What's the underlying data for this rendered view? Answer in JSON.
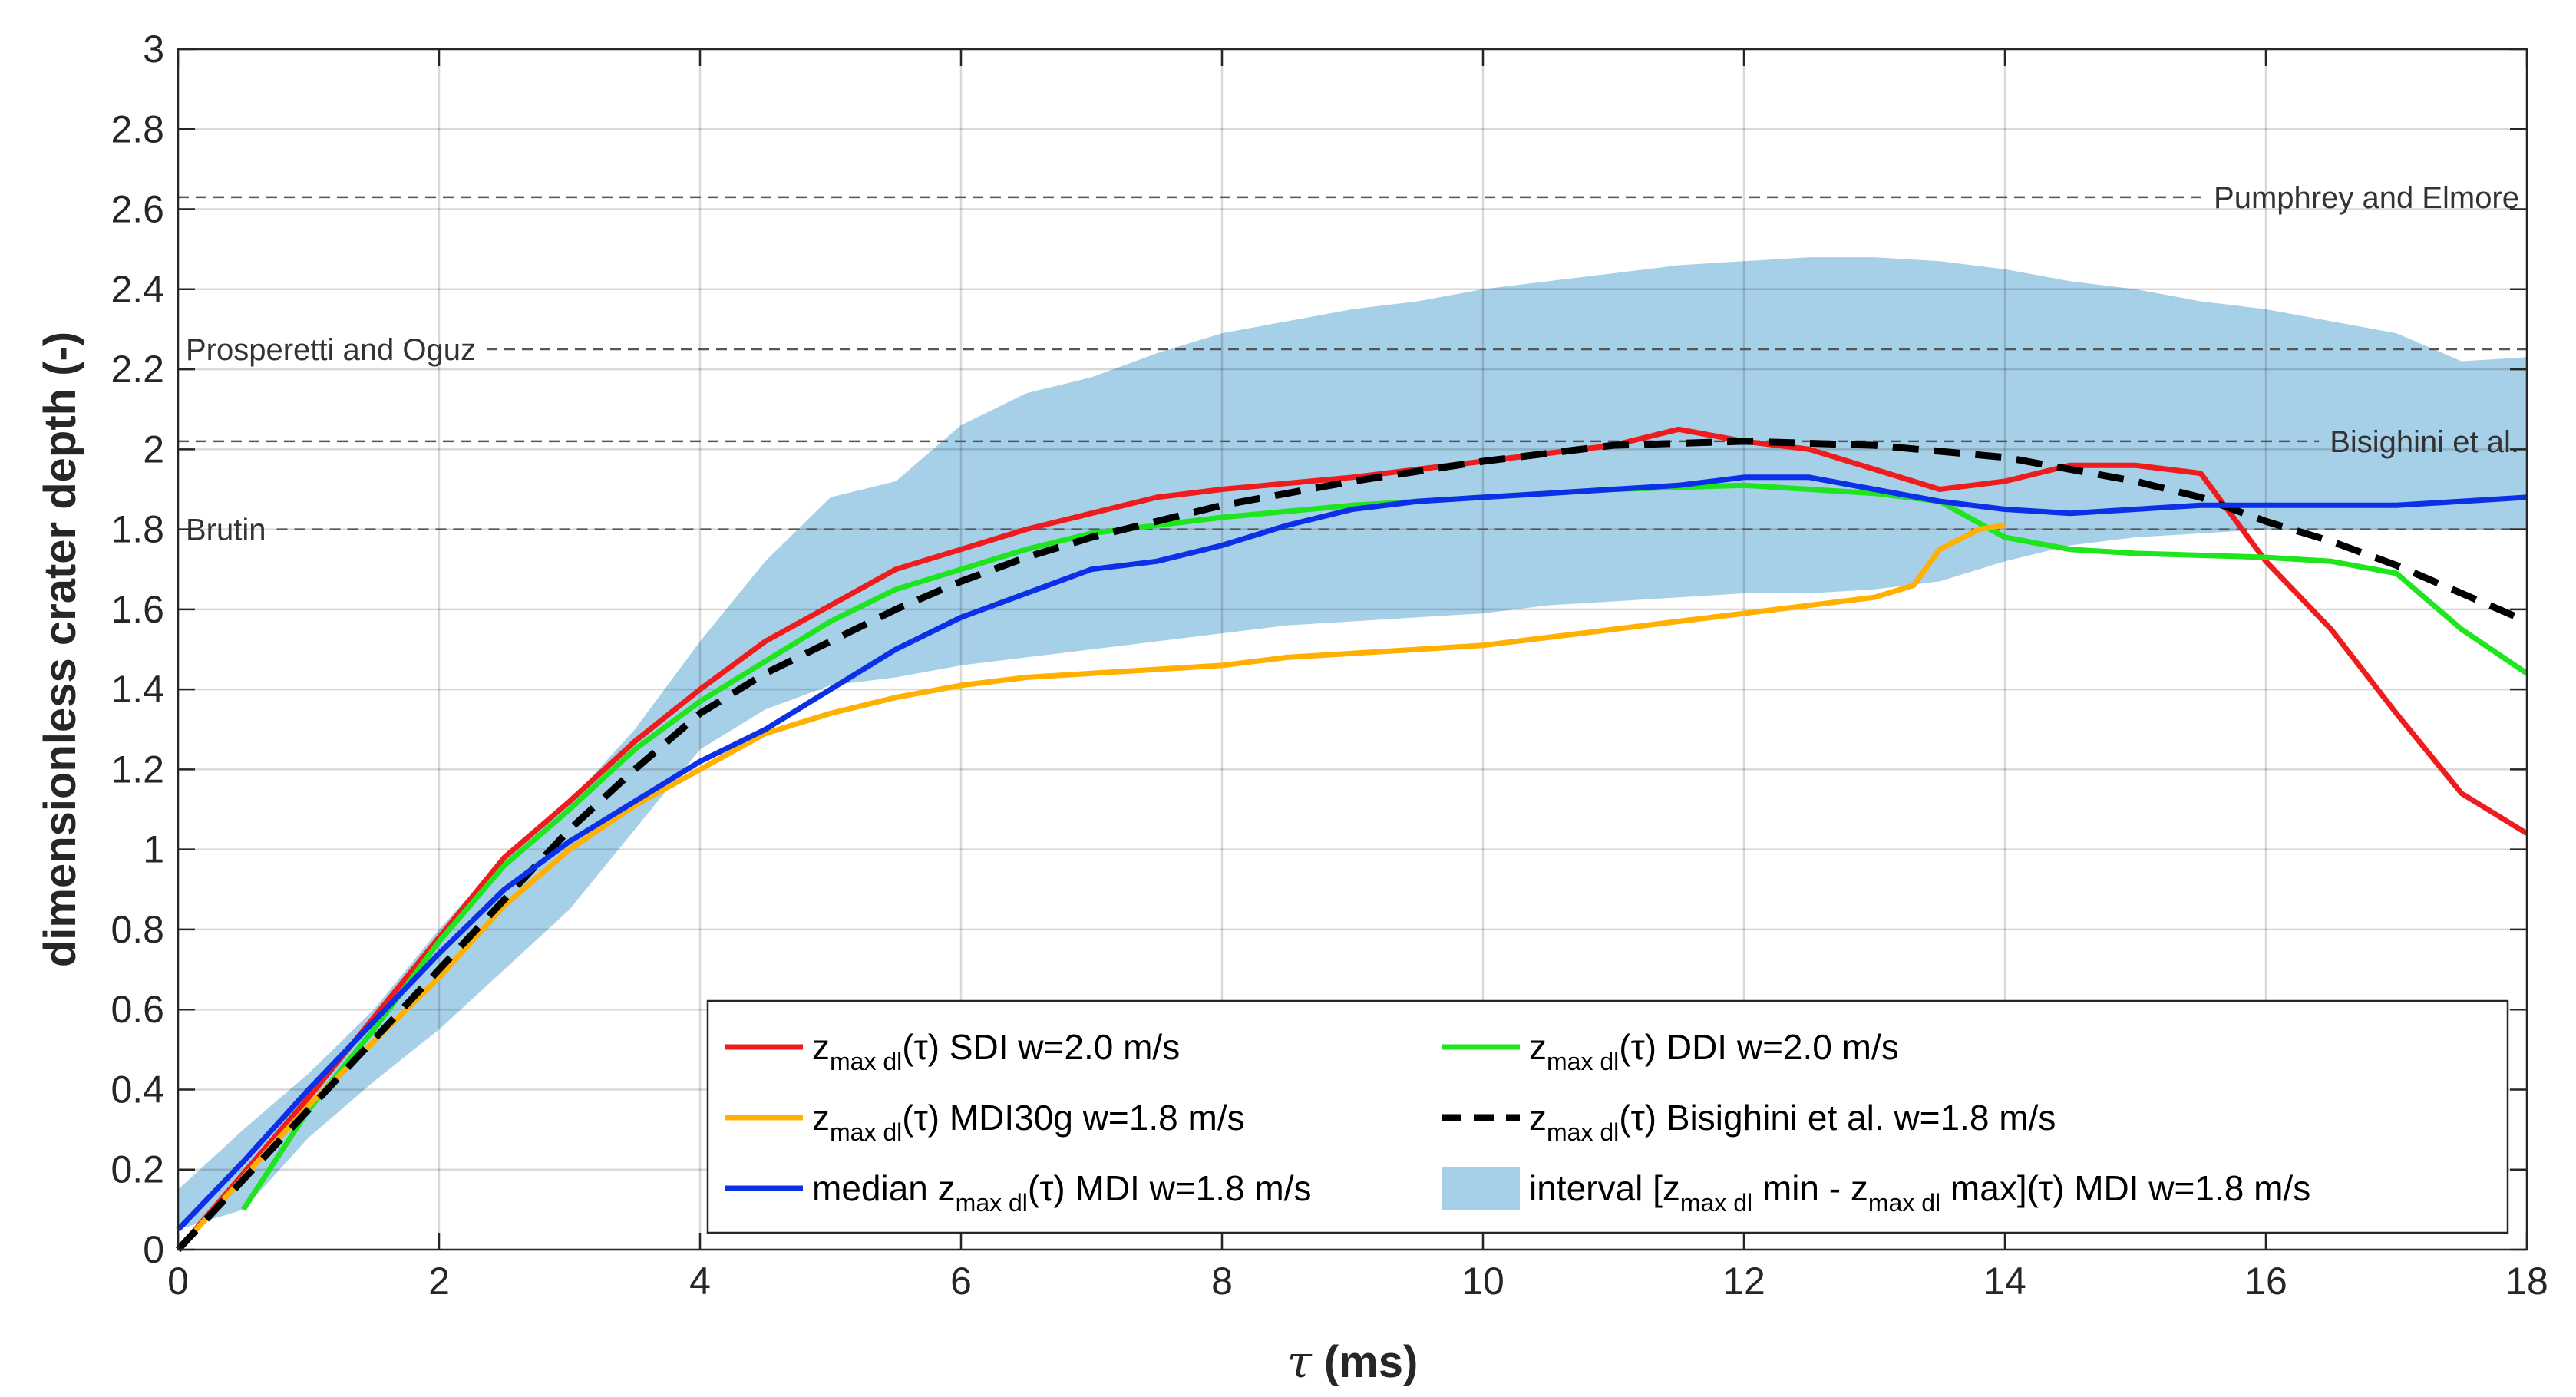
{
  "chart_data": {
    "type": "line",
    "title": "",
    "xlabel": {
      "symbol": "τ",
      "unit": " (ms)"
    },
    "ylabel": "dimensionless crater depth (-)",
    "xlim": [
      0,
      18
    ],
    "ylim": [
      0,
      3
    ],
    "xticks": [
      0,
      2,
      4,
      6,
      8,
      10,
      12,
      14,
      16,
      18
    ],
    "yticks": [
      0,
      0.2,
      0.4,
      0.6,
      0.8,
      1,
      1.2,
      1.4,
      1.6,
      1.8,
      2,
      2.2,
      2.4,
      2.6,
      2.8,
      3
    ],
    "grid": true,
    "legend_position": "bottom-right",
    "reference_lines": [
      {
        "name": "Pumphrey and Elmore",
        "y": 2.63,
        "label_side": "right"
      },
      {
        "name": "Prosperetti and Oguz",
        "y": 2.25,
        "label_side": "left"
      },
      {
        "name": "Bisighini et al.",
        "y": 2.02,
        "label_side": "right"
      },
      {
        "name": "Brutin",
        "y": 1.8,
        "label_side": "left"
      }
    ],
    "band": {
      "name": "interval [zmax dl min - zmax dl max](τ) MDI w=1.8 m/s",
      "color": "#a6cfe8",
      "x": [
        0,
        0.5,
        1,
        1.5,
        2,
        2.5,
        3,
        3.5,
        4,
        4.5,
        5,
        5.5,
        6,
        6.5,
        7,
        7.5,
        8,
        8.5,
        9,
        9.5,
        10,
        10.5,
        11,
        11.5,
        12,
        12.5,
        13,
        13.5,
        14,
        14.5,
        15,
        15.5,
        16,
        16.5,
        17,
        17.5,
        18
      ],
      "upper": [
        0.15,
        0.3,
        0.44,
        0.6,
        0.8,
        0.98,
        1.12,
        1.3,
        1.52,
        1.72,
        1.88,
        1.92,
        2.06,
        2.14,
        2.18,
        2.24,
        2.29,
        2.32,
        2.35,
        2.37,
        2.4,
        2.42,
        2.44,
        2.46,
        2.47,
        2.48,
        2.48,
        2.47,
        2.45,
        2.42,
        2.4,
        2.37,
        2.35,
        2.32,
        2.29,
        2.22,
        2.23
      ],
      "lower": [
        0.05,
        0.1,
        0.28,
        0.42,
        0.55,
        0.7,
        0.85,
        1.05,
        1.25,
        1.35,
        1.41,
        1.43,
        1.46,
        1.48,
        1.5,
        1.52,
        1.54,
        1.56,
        1.57,
        1.58,
        1.59,
        1.61,
        1.62,
        1.63,
        1.64,
        1.64,
        1.65,
        1.67,
        1.72,
        1.76,
        1.78,
        1.79,
        1.8,
        1.8,
        1.8,
        1.8,
        1.8
      ]
    },
    "series": [
      {
        "name": "SDI w=2.0 m/s",
        "color": "#ee1c1c",
        "style": "solid",
        "x": [
          0,
          1,
          2,
          2.5,
          3,
          3.5,
          4,
          4.5,
          5,
          5.5,
          6,
          6.5,
          7,
          7.5,
          8,
          9,
          9.5,
          10,
          11,
          11.5,
          12,
          12.5,
          13,
          13.5,
          14,
          14.5,
          15,
          15.5,
          16,
          16.5,
          17,
          17.5,
          18
        ],
        "y": [
          0,
          0.38,
          0.78,
          0.98,
          1.12,
          1.27,
          1.4,
          1.52,
          1.61,
          1.7,
          1.75,
          1.8,
          1.84,
          1.88,
          1.9,
          1.93,
          1.95,
          1.97,
          2.01,
          2.05,
          2.02,
          2.0,
          1.95,
          1.9,
          1.92,
          1.96,
          1.96,
          1.94,
          1.72,
          1.55,
          1.34,
          1.14,
          1.04
        ]
      },
      {
        "name": "DDI w=2.0 m/s",
        "color": "#1ee51e",
        "style": "solid",
        "x": [
          0.5,
          1,
          1.5,
          2,
          2.5,
          3,
          3.5,
          4,
          4.5,
          5,
          5.5,
          6,
          6.5,
          7,
          8,
          9,
          10,
          11,
          12,
          13,
          13.5,
          14,
          14.5,
          15,
          16,
          16.5,
          17,
          17.5,
          18
        ],
        "y": [
          0.1,
          0.35,
          0.55,
          0.77,
          0.96,
          1.1,
          1.25,
          1.37,
          1.47,
          1.57,
          1.65,
          1.7,
          1.75,
          1.79,
          1.83,
          1.86,
          1.88,
          1.9,
          1.91,
          1.89,
          1.87,
          1.78,
          1.75,
          1.74,
          1.73,
          1.72,
          1.69,
          1.55,
          1.44
        ]
      },
      {
        "name": "MDI30g w=1.8 m/s",
        "color": "#ffb000",
        "style": "solid",
        "x": [
          0,
          1,
          2,
          2.5,
          3,
          3.5,
          4,
          4.5,
          5,
          5.5,
          6,
          6.5,
          7,
          7.5,
          8,
          8.5,
          9,
          9.5,
          10,
          10.5,
          11,
          11.5,
          12,
          12.5,
          13,
          13.3,
          13.5,
          13.8,
          14
        ],
        "y": [
          0,
          0.36,
          0.68,
          0.86,
          1.0,
          1.11,
          1.2,
          1.29,
          1.34,
          1.38,
          1.41,
          1.43,
          1.44,
          1.45,
          1.46,
          1.48,
          1.49,
          1.5,
          1.51,
          1.53,
          1.55,
          1.57,
          1.59,
          1.61,
          1.63,
          1.66,
          1.75,
          1.8,
          1.81
        ]
      },
      {
        "name": "Bisighini et al. w=1.8 m/s",
        "color": "#000000",
        "style": "dashed",
        "x": [
          0,
          1,
          2,
          3,
          3.5,
          4,
          4.5,
          5,
          5.5,
          6,
          6.5,
          7,
          7.5,
          8,
          8.5,
          9,
          10,
          11,
          12,
          13,
          14,
          15,
          15.5,
          16,
          16.5,
          17,
          17.5,
          18
        ],
        "y": [
          0,
          0.35,
          0.7,
          1.05,
          1.2,
          1.34,
          1.44,
          1.52,
          1.6,
          1.67,
          1.73,
          1.78,
          1.82,
          1.86,
          1.89,
          1.92,
          1.97,
          2.01,
          2.02,
          2.01,
          1.98,
          1.92,
          1.88,
          1.82,
          1.77,
          1.71,
          1.64,
          1.57
        ]
      },
      {
        "name": "median MDI w=1.8 m/s",
        "color": "#0c2fe8",
        "style": "solid",
        "x": [
          0,
          0.5,
          1,
          1.5,
          2,
          2.5,
          3,
          3.5,
          4,
          4.5,
          5,
          5.5,
          6,
          6.5,
          7,
          7.5,
          8,
          8.5,
          9,
          9.5,
          10,
          10.5,
          11,
          11.5,
          12,
          12.5,
          13,
          13.5,
          14,
          14.5,
          15,
          15.5,
          16,
          16.5,
          17,
          17.5,
          18
        ],
        "y": [
          0.05,
          0.22,
          0.4,
          0.57,
          0.74,
          0.9,
          1.02,
          1.12,
          1.22,
          1.3,
          1.4,
          1.5,
          1.58,
          1.64,
          1.7,
          1.72,
          1.76,
          1.81,
          1.85,
          1.87,
          1.88,
          1.89,
          1.9,
          1.91,
          1.93,
          1.93,
          1.9,
          1.87,
          1.85,
          1.84,
          1.85,
          1.86,
          1.86,
          1.86,
          1.86,
          1.87,
          1.88
        ]
      }
    ],
    "legend": [
      {
        "key": "sdi",
        "prefix": "z",
        "sub": "max dl",
        "mid": "(τ)",
        "suffix": " SDI w=2.0 m/s",
        "color": "#ee1c1c",
        "style": "solid"
      },
      {
        "key": "ddi",
        "prefix": "z",
        "sub": "max dl",
        "mid": "(τ)",
        "suffix": " DDI w=2.0 m/s",
        "color": "#1ee51e",
        "style": "solid"
      },
      {
        "key": "mdi30g",
        "prefix": "z",
        "sub": "max dl",
        "mid": "(τ)",
        "suffix": " MDI30g w=1.8 m/s",
        "color": "#ffb000",
        "style": "solid"
      },
      {
        "key": "bisighini",
        "prefix": "z",
        "sub": "max dl",
        "mid": "(τ)",
        "suffix": " Bisighini et al. w=1.8 m/s",
        "color": "#000000",
        "style": "dashed"
      },
      {
        "key": "median",
        "prefix": "median z",
        "sub": "max dl",
        "mid": "(τ)",
        "suffix": " MDI w=1.8 m/s",
        "color": "#0c2fe8",
        "style": "solid"
      },
      {
        "key": "interval",
        "prefix": "interval [z",
        "sub": "max dl",
        "mid": " min - z",
        "sub2": "max dl",
        "mid2": " max](τ)",
        "suffix": " MDI w=1.8 m/s",
        "color": "#a6cfe8",
        "style": "patch"
      }
    ]
  }
}
